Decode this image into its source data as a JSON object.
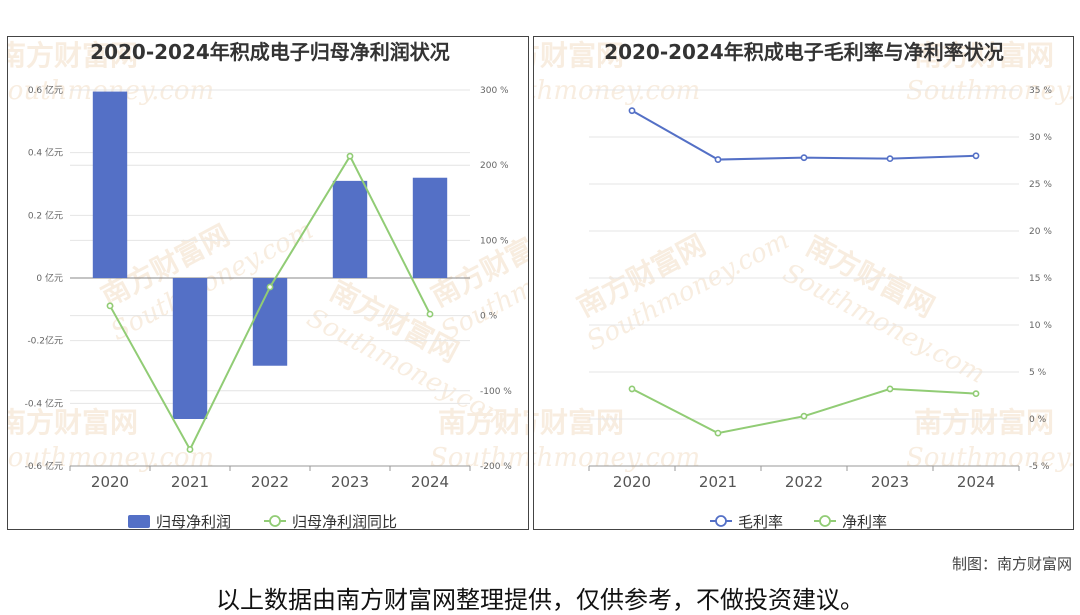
{
  "charts": [
    {
      "title": "2020-2024年积成电子归母净利润状况",
      "watermark": {
        "cn": "南方财富网",
        "en": "Southmoney.com"
      },
      "chart_data": {
        "type": "bar",
        "categories": [
          "2020",
          "2021",
          "2022",
          "2023",
          "2024"
        ],
        "series": [
          {
            "name": "归母净利润",
            "kind": "bar",
            "axis": "left",
            "color": "#5470c6",
            "values": [
              0.595,
              -0.45,
              -0.28,
              0.31,
              0.32
            ]
          },
          {
            "name": "归母净利润同比",
            "kind": "line",
            "axis": "right",
            "color": "#91cc75",
            "values": [
              13,
              -178,
              38,
              212,
              2
            ]
          }
        ],
        "yleft": {
          "ticks": [
            -0.6,
            -0.4,
            -0.2,
            0,
            0.2,
            0.4,
            0.6
          ],
          "tick_labels": [
            "-0.6 亿元",
            "-0.4 亿元",
            "-0.2亿元",
            "0 亿元",
            "0.2 亿元",
            "0.4 亿元",
            "0.6 亿元"
          ],
          "ylim": [
            -0.6,
            0.6
          ]
        },
        "yright": {
          "ticks": [
            -200,
            -100,
            0,
            100,
            200,
            300
          ],
          "tick_labels": [
            "-200 %",
            "-100 %",
            "0 %",
            "100 %",
            "200 %",
            "300 %"
          ],
          "ylim": [
            -200,
            300
          ]
        },
        "legend_position": "bottom-center",
        "grid": "horizontal"
      }
    },
    {
      "title": "2020-2024年积成电子毛利率与净利率状况",
      "watermark": {
        "cn": "南方财富网",
        "en": "Southmoney.com"
      },
      "chart_data": {
        "type": "line",
        "categories": [
          "2020",
          "2021",
          "2022",
          "2023",
          "2024"
        ],
        "series": [
          {
            "name": "毛利率",
            "color": "#5470c6",
            "values": [
              32.8,
              27.6,
              27.8,
              27.7,
              28.0
            ]
          },
          {
            "name": "净利率",
            "color": "#91cc75",
            "values": [
              3.2,
              -1.5,
              0.3,
              3.2,
              2.7
            ]
          }
        ],
        "yright": {
          "ticks": [
            -5,
            0,
            5,
            10,
            15,
            20,
            25,
            30,
            35
          ],
          "tick_labels": [
            "-5 %",
            "0 %",
            "5 %",
            "10 %",
            "15 %",
            "20 %",
            "25 %",
            "30 %",
            "35 %"
          ],
          "ylim": [
            -5,
            35
          ]
        },
        "legend_position": "bottom-center",
        "grid": "horizontal"
      }
    }
  ],
  "credit": "制图：南方财富网",
  "footer_note": "以上数据由南方财富网整理提供，仅供参考，不做投资建议。"
}
